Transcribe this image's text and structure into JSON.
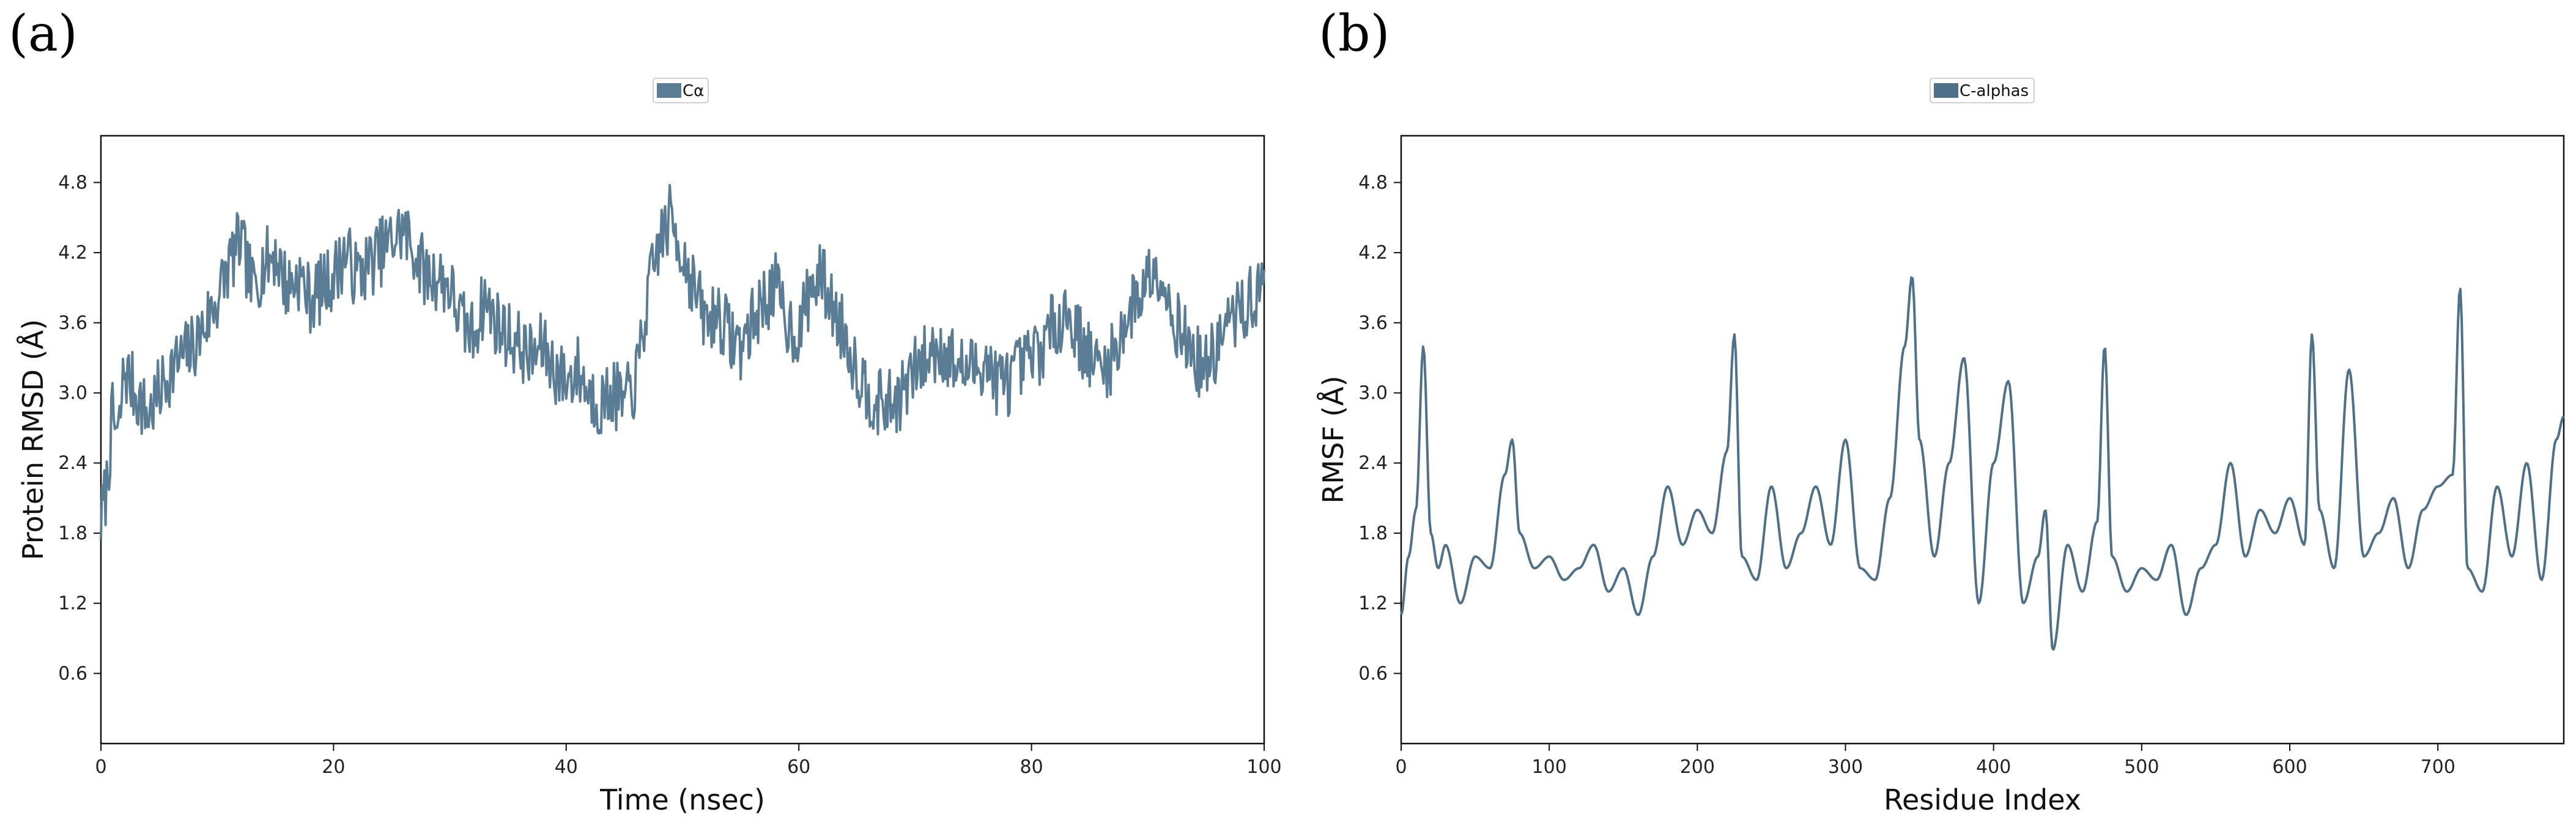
{
  "panels": [
    {
      "letter": "(a)"
    },
    {
      "letter": "(b)"
    }
  ],
  "chart_data": [
    {
      "type": "line",
      "title": "",
      "legend": {
        "label": "Cα",
        "placement": "top-center"
      },
      "xlabel": "Time (nsec)",
      "ylabel": "Protein RMSD (Å)",
      "xlim": [
        0,
        100
      ],
      "ylim": [
        0,
        5.2
      ],
      "xticks": [
        0,
        20,
        40,
        60,
        80,
        100
      ],
      "yticks": [
        0.6,
        1.2,
        1.8,
        2.4,
        3.0,
        3.6,
        4.2,
        4.8
      ],
      "grid": false,
      "color": "#5a7d95",
      "series": [
        {
          "name": "Cα",
          "x": [
            0,
            0.5,
            1,
            1.5,
            2,
            3,
            4,
            5,
            6,
            7,
            8,
            9,
            10,
            11,
            12,
            13,
            14,
            15,
            16,
            17,
            18,
            19,
            20,
            21,
            22,
            23,
            24,
            25,
            26,
            27,
            28,
            29,
            30,
            31,
            32,
            33,
            34,
            35,
            36,
            37,
            38,
            39,
            40,
            41,
            42,
            43,
            44,
            45,
            46,
            47,
            48,
            49,
            50,
            51,
            52,
            53,
            54,
            55,
            56,
            57,
            58,
            59,
            60,
            61,
            62,
            63,
            64,
            65,
            66,
            67,
            68,
            69,
            70,
            71,
            72,
            73,
            74,
            75,
            76,
            77,
            78,
            79,
            80,
            81,
            82,
            83,
            84,
            85,
            86,
            87,
            88,
            89,
            90,
            91,
            92,
            93,
            94,
            95,
            96,
            97,
            98,
            99,
            100
          ],
          "values": [
            1.9,
            2.2,
            2.8,
            2.6,
            3.2,
            3.0,
            2.8,
            3.0,
            3.2,
            3.3,
            3.4,
            3.6,
            3.8,
            4.1,
            4.3,
            3.9,
            4.1,
            4.2,
            3.9,
            4.0,
            3.8,
            3.9,
            4.0,
            4.2,
            4.0,
            4.1,
            4.2,
            4.3,
            4.4,
            4.2,
            4.0,
            4.0,
            3.9,
            3.6,
            3.5,
            3.8,
            3.6,
            3.5,
            3.4,
            3.3,
            3.4,
            3.2,
            3.1,
            3.2,
            3.0,
            2.9,
            3.0,
            2.9,
            3.1,
            3.8,
            4.3,
            4.5,
            4.2,
            3.9,
            3.6,
            3.7,
            3.5,
            3.4,
            3.6,
            3.8,
            3.9,
            3.6,
            3.5,
            3.9,
            4.0,
            3.7,
            3.5,
            3.2,
            3.0,
            2.9,
            2.9,
            3.0,
            3.2,
            3.3,
            3.4,
            3.3,
            3.2,
            3.2,
            3.3,
            3.1,
            3.1,
            3.2,
            3.3,
            3.4,
            3.6,
            3.7,
            3.5,
            3.3,
            3.2,
            3.3,
            3.6,
            3.8,
            4.0,
            4.1,
            3.7,
            3.5,
            3.3,
            3.2,
            3.4,
            3.6,
            3.7,
            3.8,
            3.9
          ]
        }
      ]
    },
    {
      "type": "line",
      "title": "",
      "legend": {
        "label": "C-alphas",
        "placement": "top-center"
      },
      "xlabel": "Residue Index",
      "ylabel": "RMSF (Å)",
      "xlim": [
        0,
        785
      ],
      "ylim": [
        0,
        5.2
      ],
      "xticks": [
        0,
        100,
        200,
        300,
        400,
        500,
        600,
        700
      ],
      "yticks": [
        0.6,
        1.2,
        1.8,
        2.4,
        3.0,
        3.6,
        4.2,
        4.8
      ],
      "grid": false,
      "color": "#4e7088",
      "series": [
        {
          "name": "C-alphas",
          "x": [
            0,
            5,
            10,
            15,
            20,
            25,
            30,
            40,
            50,
            60,
            70,
            75,
            80,
            90,
            100,
            110,
            120,
            130,
            140,
            150,
            160,
            170,
            180,
            190,
            200,
            210,
            220,
            225,
            230,
            240,
            250,
            260,
            270,
            280,
            290,
            300,
            310,
            320,
            330,
            340,
            345,
            350,
            360,
            370,
            380,
            390,
            400,
            410,
            420,
            430,
            435,
            440,
            450,
            460,
            470,
            475,
            480,
            490,
            500,
            510,
            520,
            530,
            540,
            550,
            560,
            570,
            580,
            590,
            600,
            610,
            615,
            620,
            630,
            640,
            650,
            660,
            670,
            680,
            690,
            700,
            710,
            715,
            720,
            730,
            740,
            750,
            760,
            770,
            780,
            785
          ],
          "values": [
            1.1,
            1.6,
            2.0,
            3.4,
            1.8,
            1.5,
            1.7,
            1.2,
            1.6,
            1.5,
            2.3,
            2.6,
            1.8,
            1.5,
            1.6,
            1.4,
            1.5,
            1.7,
            1.3,
            1.5,
            1.1,
            1.6,
            2.2,
            1.7,
            2.0,
            1.8,
            2.5,
            3.5,
            1.6,
            1.4,
            2.2,
            1.5,
            1.8,
            2.2,
            1.7,
            2.6,
            1.5,
            1.4,
            2.1,
            3.4,
            4.0,
            2.6,
            1.6,
            2.4,
            3.3,
            1.2,
            2.4,
            3.1,
            1.2,
            1.6,
            2.0,
            0.8,
            1.7,
            1.3,
            1.9,
            3.4,
            1.6,
            1.3,
            1.5,
            1.4,
            1.7,
            1.1,
            1.5,
            1.7,
            2.4,
            1.6,
            2.0,
            1.8,
            2.1,
            1.7,
            3.5,
            2.0,
            1.5,
            3.2,
            1.6,
            1.8,
            2.1,
            1.5,
            2.0,
            2.2,
            2.3,
            3.9,
            1.5,
            1.3,
            2.2,
            1.6,
            2.4,
            1.4,
            2.6,
            2.8
          ]
        }
      ]
    }
  ]
}
